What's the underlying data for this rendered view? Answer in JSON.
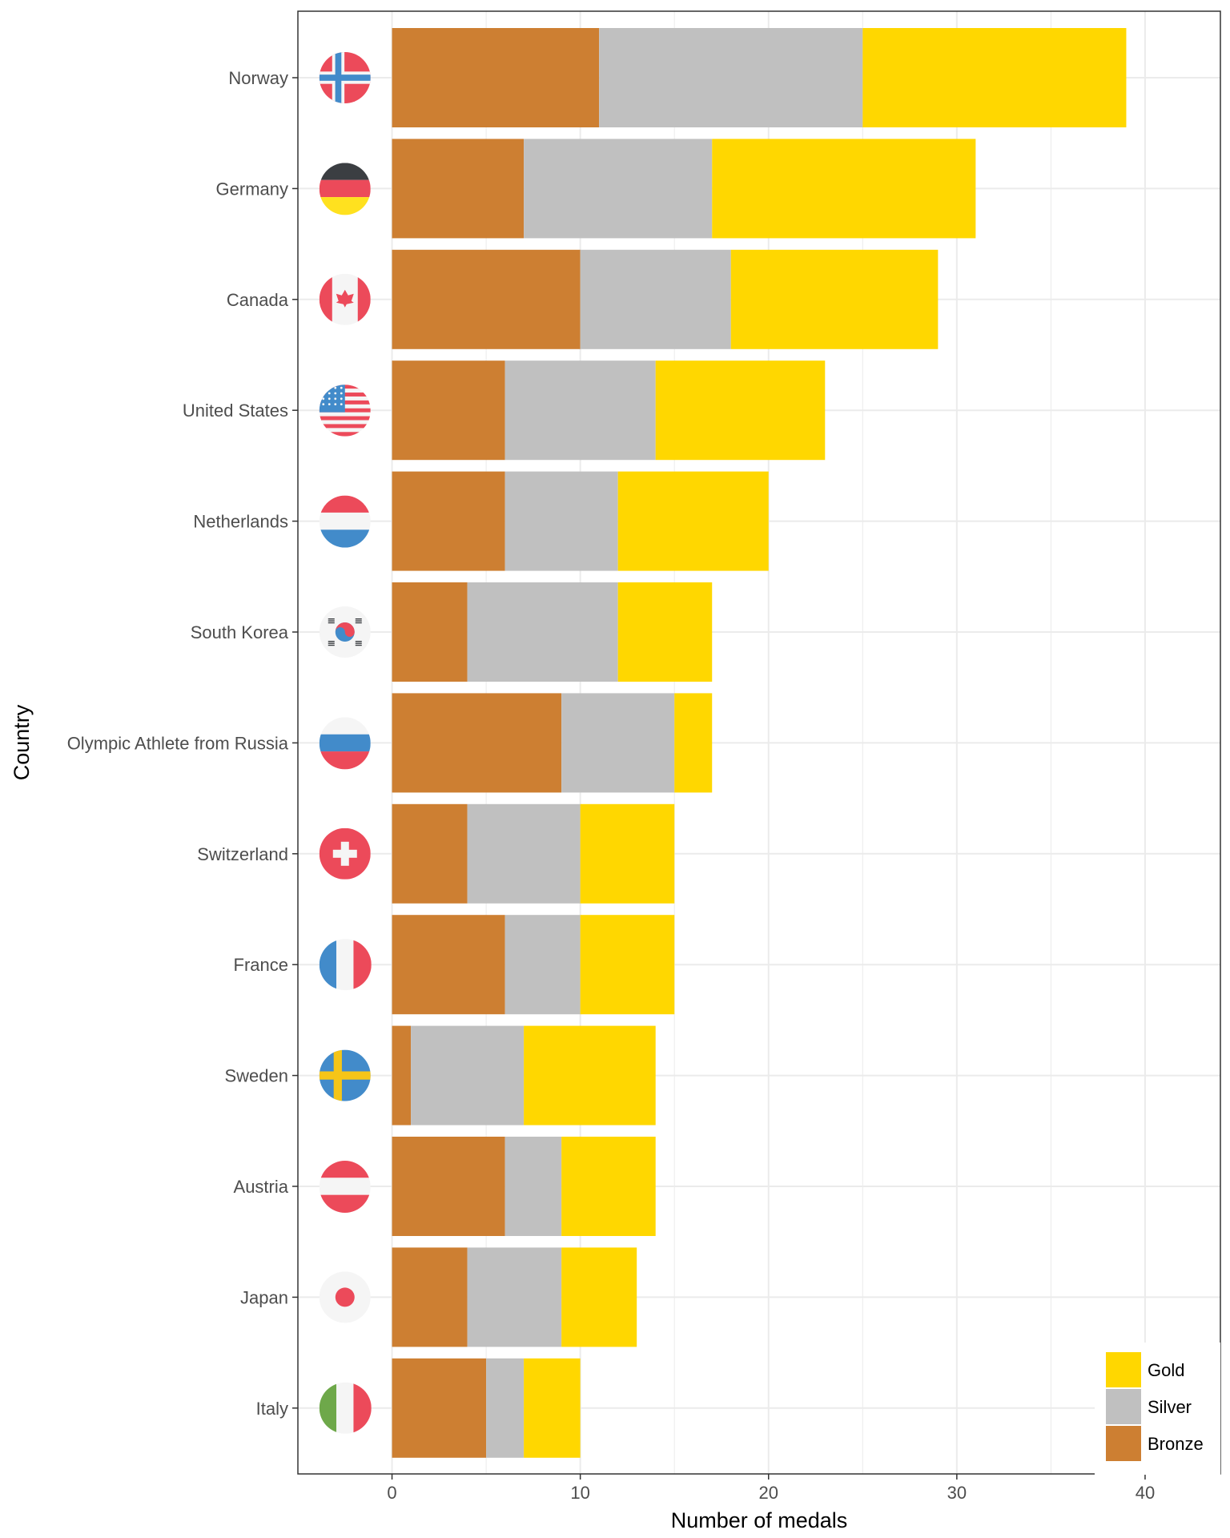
{
  "chart_data": {
    "type": "bar",
    "orientation": "horizontal",
    "stacked": true,
    "xlabel": "Number of medals",
    "ylabel": "Country",
    "xlim": [
      -5,
      44
    ],
    "xticks": [
      0,
      10,
      20,
      30,
      40
    ],
    "grid": true,
    "legend_position": "bottom-right",
    "categories": [
      "Norway",
      "Germany",
      "Canada",
      "United States",
      "Netherlands",
      "South Korea",
      "Olympic Athlete from Russia",
      "Switzerland",
      "France",
      "Sweden",
      "Austria",
      "Japan",
      "Italy"
    ],
    "series": [
      {
        "name": "Bronze",
        "color": "#CD7F32",
        "values": [
          11,
          7,
          10,
          6,
          6,
          4,
          9,
          4,
          6,
          1,
          6,
          4,
          5
        ]
      },
      {
        "name": "Silver",
        "color": "#C0C0C0",
        "values": [
          14,
          10,
          8,
          8,
          6,
          8,
          6,
          6,
          4,
          6,
          3,
          5,
          2
        ]
      },
      {
        "name": "Gold",
        "color": "#FFD700",
        "values": [
          14,
          14,
          11,
          9,
          8,
          5,
          2,
          5,
          5,
          7,
          5,
          4,
          3
        ]
      }
    ],
    "legend": [
      {
        "name": "Gold",
        "color": "#FFD700"
      },
      {
        "name": "Silver",
        "color": "#C0C0C0"
      },
      {
        "name": "Bronze",
        "color": "#CD7F32"
      }
    ],
    "flag_icons": [
      "norway-flag-icon",
      "germany-flag-icon",
      "canada-flag-icon",
      "united-states-flag-icon",
      "netherlands-flag-icon",
      "south-korea-flag-icon",
      "russia-flag-icon",
      "switzerland-flag-icon",
      "france-flag-icon",
      "sweden-flag-icon",
      "austria-flag-icon",
      "japan-flag-icon",
      "italy-flag-icon"
    ]
  }
}
